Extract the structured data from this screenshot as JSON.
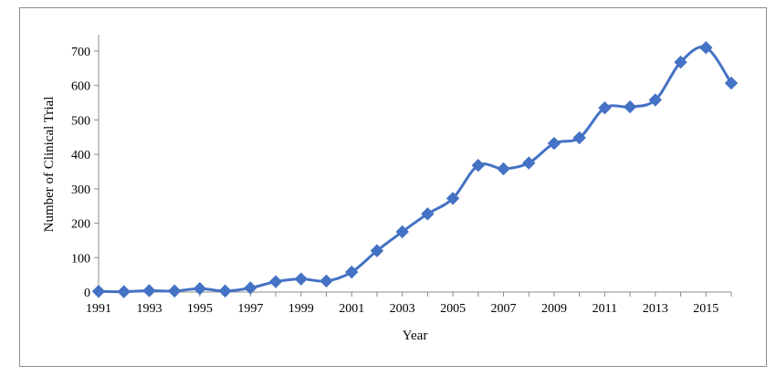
{
  "chart_data": {
    "type": "line",
    "title": "",
    "xlabel": "Year",
    "ylabel": "Number of Clinical Trial",
    "xlim": [
      1991,
      2016
    ],
    "ylim": [
      0,
      700
    ],
    "yticks": [
      0,
      100,
      200,
      300,
      400,
      500,
      600,
      700
    ],
    "xticks": [
      1991,
      1993,
      1995,
      1997,
      1999,
      2001,
      2003,
      2005,
      2007,
      2009,
      2011,
      2013,
      2015
    ],
    "grid": false,
    "legend": "none",
    "marker": "diamond",
    "smooth": true,
    "color": "#4472c4",
    "x": [
      1991,
      1992,
      1993,
      1994,
      1995,
      1996,
      1997,
      1998,
      1999,
      2000,
      2001,
      2002,
      2003,
      2004,
      2005,
      2006,
      2007,
      2008,
      2009,
      2010,
      2011,
      2012,
      2013,
      2014,
      2015,
      2016
    ],
    "y": [
      2,
      1,
      4,
      3,
      10,
      3,
      12,
      30,
      38,
      32,
      58,
      120,
      175,
      227,
      272,
      368,
      358,
      375,
      432,
      448,
      535,
      538,
      558,
      668,
      710,
      607
    ]
  }
}
